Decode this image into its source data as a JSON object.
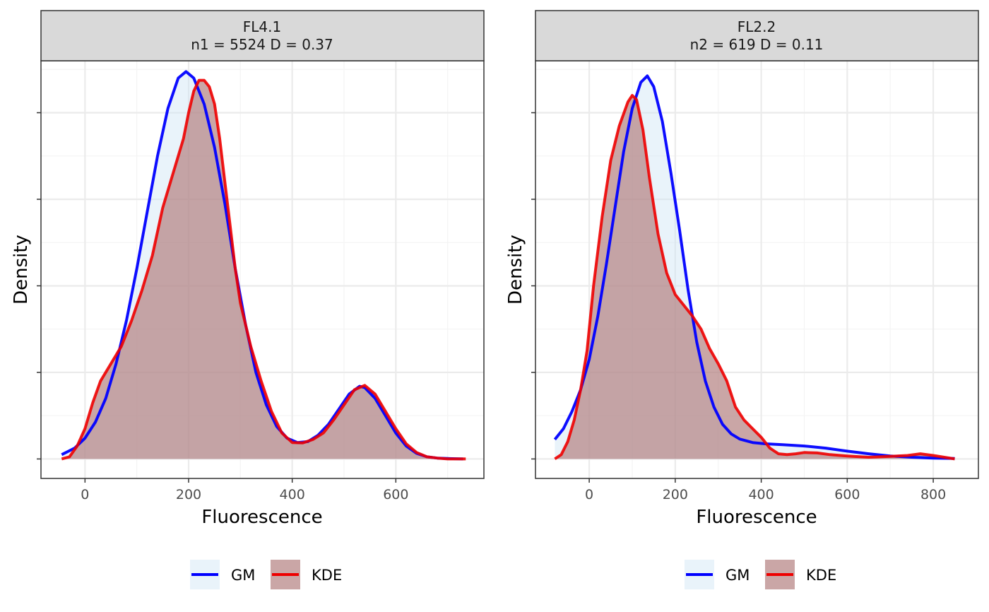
{
  "chart_data": [
    {
      "type": "line",
      "strip": [
        "FL4.1",
        "n1 = 5524 D = 0.37"
      ],
      "xlabel": "Fluorescence",
      "ylabel": "Density",
      "xlim": [
        -85,
        770
      ],
      "ylim": [
        -0.045,
        0.92
      ],
      "xticks": [
        0,
        200,
        400,
        600
      ],
      "x_minor": [
        100,
        300,
        500,
        700
      ],
      "y_major_gridlines": [
        0,
        0.2,
        0.4,
        0.6,
        0.8
      ],
      "y_minor_gridlines": [
        0.1,
        0.3,
        0.5,
        0.7,
        0.9
      ],
      "grid": true,
      "y_tick_labels_shown": false,
      "series": [
        {
          "name": "GM",
          "color": "#0000ff",
          "fill": "#cfe5f5",
          "x": [
            -45,
            -20,
            0,
            20,
            40,
            60,
            80,
            100,
            120,
            140,
            160,
            180,
            195,
            210,
            230,
            250,
            270,
            290,
            310,
            330,
            350,
            370,
            390,
            410,
            430,
            450,
            470,
            490,
            510,
            530,
            540,
            560,
            580,
            600,
            620,
            640,
            660,
            680,
            700,
            730
          ],
          "y": [
            0.01,
            0.025,
            0.048,
            0.085,
            0.14,
            0.22,
            0.32,
            0.44,
            0.57,
            0.7,
            0.81,
            0.88,
            0.895,
            0.88,
            0.82,
            0.72,
            0.59,
            0.44,
            0.31,
            0.2,
            0.125,
            0.075,
            0.048,
            0.038,
            0.04,
            0.055,
            0.08,
            0.115,
            0.15,
            0.168,
            0.165,
            0.14,
            0.1,
            0.06,
            0.03,
            0.013,
            0.005,
            0.002,
            0.001,
            0.0
          ]
        },
        {
          "name": "KDE",
          "color": "#ee0000",
          "fill": "#b38080",
          "x": [
            -45,
            -30,
            -15,
            0,
            15,
            30,
            50,
            70,
            90,
            110,
            130,
            150,
            170,
            190,
            200,
            210,
            220,
            230,
            240,
            250,
            260,
            270,
            280,
            290,
            300,
            320,
            340,
            360,
            380,
            400,
            420,
            440,
            460,
            480,
            500,
            520,
            540,
            560,
            580,
            600,
            620,
            640,
            660,
            680,
            700,
            735
          ],
          "y": [
            0.0,
            0.005,
            0.03,
            0.07,
            0.13,
            0.18,
            0.22,
            0.26,
            0.32,
            0.39,
            0.47,
            0.58,
            0.66,
            0.74,
            0.8,
            0.85,
            0.875,
            0.875,
            0.86,
            0.82,
            0.74,
            0.64,
            0.54,
            0.44,
            0.36,
            0.26,
            0.18,
            0.11,
            0.06,
            0.038,
            0.037,
            0.045,
            0.06,
            0.09,
            0.125,
            0.16,
            0.17,
            0.15,
            0.11,
            0.07,
            0.035,
            0.015,
            0.005,
            0.002,
            0.0,
            0.0
          ]
        }
      ]
    },
    {
      "type": "line",
      "strip": [
        "FL2.2",
        "n2 = 619 D = 0.11"
      ],
      "xlabel": "Fluorescence",
      "ylabel": "Density",
      "xlim": [
        -125,
        905
      ],
      "ylim": [
        -0.045,
        0.92
      ],
      "xticks": [
        0,
        200,
        400,
        600,
        800
      ],
      "x_minor": [
        100,
        300,
        500,
        700
      ],
      "y_major_gridlines": [
        0,
        0.2,
        0.4,
        0.6,
        0.8
      ],
      "y_minor_gridlines": [
        0.1,
        0.3,
        0.5,
        0.7,
        0.9
      ],
      "grid": true,
      "y_tick_labels_shown": false,
      "series": [
        {
          "name": "GM",
          "color": "#0000ff",
          "fill": "#cfe5f5",
          "x": [
            -80,
            -60,
            -40,
            -20,
            0,
            20,
            40,
            60,
            80,
            100,
            120,
            135,
            150,
            170,
            190,
            210,
            230,
            250,
            270,
            290,
            310,
            330,
            350,
            380,
            410,
            450,
            500,
            550,
            600,
            650,
            700,
            750,
            800,
            850
          ],
          "y": [
            0.045,
            0.07,
            0.11,
            0.16,
            0.23,
            0.33,
            0.45,
            0.58,
            0.71,
            0.81,
            0.87,
            0.885,
            0.86,
            0.78,
            0.66,
            0.53,
            0.39,
            0.27,
            0.18,
            0.12,
            0.08,
            0.058,
            0.046,
            0.038,
            0.035,
            0.033,
            0.03,
            0.025,
            0.018,
            0.012,
            0.007,
            0.004,
            0.002,
            0.001
          ]
        },
        {
          "name": "KDE",
          "color": "#ee0000",
          "fill": "#b38080",
          "x": [
            -80,
            -65,
            -50,
            -35,
            -20,
            -5,
            10,
            30,
            50,
            70,
            90,
            100,
            110,
            125,
            140,
            160,
            180,
            200,
            220,
            240,
            260,
            280,
            300,
            320,
            340,
            360,
            380,
            400,
            420,
            440,
            460,
            480,
            500,
            530,
            560,
            600,
            650,
            700,
            740,
            770,
            800,
            850
          ],
          "y": [
            0.0,
            0.01,
            0.04,
            0.09,
            0.16,
            0.25,
            0.4,
            0.56,
            0.69,
            0.77,
            0.825,
            0.84,
            0.83,
            0.76,
            0.65,
            0.52,
            0.43,
            0.38,
            0.355,
            0.33,
            0.3,
            0.255,
            0.22,
            0.18,
            0.12,
            0.09,
            0.07,
            0.05,
            0.025,
            0.012,
            0.01,
            0.012,
            0.015,
            0.014,
            0.01,
            0.007,
            0.004,
            0.006,
            0.008,
            0.012,
            0.008,
            0.0
          ]
        }
      ]
    }
  ],
  "legend": {
    "placement": "bottom",
    "items": [
      {
        "label": "GM",
        "color": "#0000ff",
        "fill": "#cfe5f5"
      },
      {
        "label": "KDE",
        "color": "#ee0000",
        "fill": "#b38080"
      }
    ]
  },
  "colors": {
    "strip_background": "#d9d9d9",
    "grid_major": "#ebebeb",
    "grid_minor": "#f4f4f4",
    "panel_border": "#333333"
  }
}
